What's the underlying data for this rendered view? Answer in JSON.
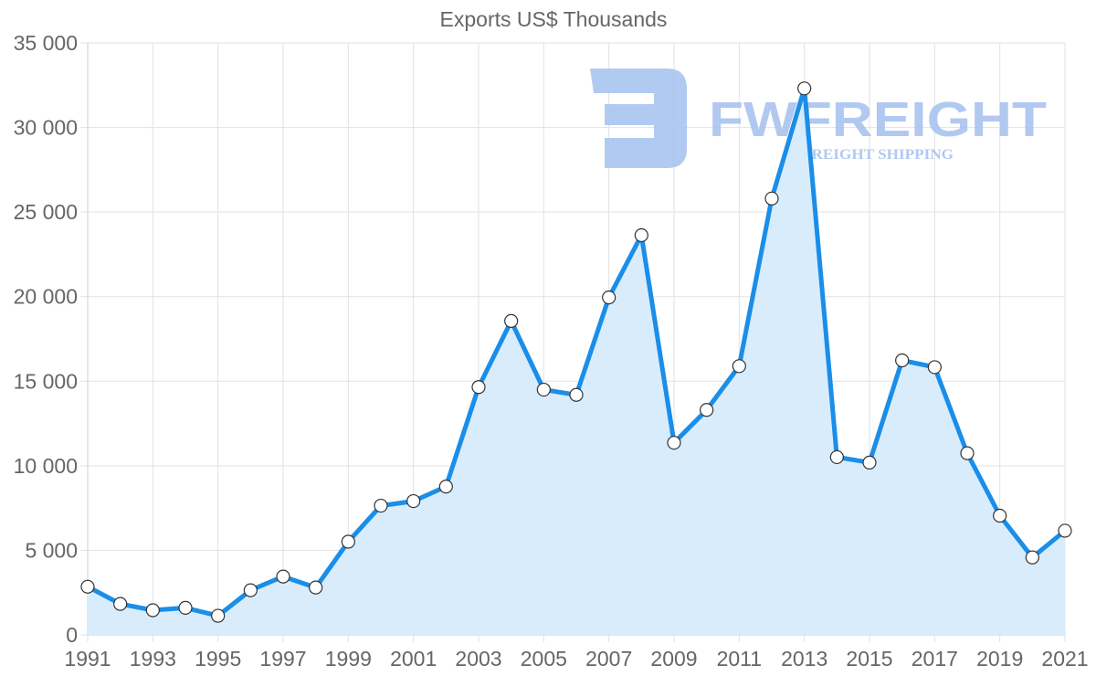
{
  "chart_data": {
    "type": "line",
    "title": "Exports US$ Thousands",
    "xlabel": "",
    "ylabel": "",
    "ylim": [
      0,
      35000
    ],
    "y_ticks": [
      "0",
      "5 000",
      "10 000",
      "15 000",
      "20 000",
      "25 000",
      "30 000",
      "35 000"
    ],
    "y_tick_values": [
      0,
      5000,
      10000,
      15000,
      20000,
      25000,
      30000,
      35000
    ],
    "x_tick_labels": [
      "1991",
      "1993",
      "1995",
      "1997",
      "1999",
      "2001",
      "2003",
      "2005",
      "2007",
      "2009",
      "2011",
      "2013",
      "2015",
      "2017",
      "2019",
      "2021"
    ],
    "grid": true,
    "fill": true,
    "legend": null,
    "series": [
      {
        "name": "Exports",
        "color": "#1a8ee8",
        "fill_color": "#d7ebfc",
        "x": [
          1991,
          1992,
          1993,
          1994,
          1995,
          1996,
          1997,
          1998,
          1999,
          2000,
          2001,
          2002,
          2003,
          2004,
          2005,
          2006,
          2007,
          2008,
          2009,
          2010,
          2011,
          2012,
          2013,
          2014,
          2015,
          2016,
          2017,
          2018,
          2019,
          2020,
          2021
        ],
        "values": [
          2850,
          1830,
          1460,
          1600,
          1130,
          2640,
          3450,
          2800,
          5510,
          7640,
          7910,
          8770,
          14650,
          18560,
          14500,
          14190,
          19950,
          23630,
          11360,
          13300,
          15890,
          25800,
          32310,
          10510,
          10190,
          16230,
          15830,
          10740,
          7050,
          4580,
          6160
        ]
      }
    ]
  },
  "watermark": {
    "brand": "FWFREIGHT",
    "tagline": "FREIGHT SHIPPING",
    "color": "#a9c4ef"
  },
  "colors": {
    "line": "#1a8ee8",
    "fill": "#d7ebfc",
    "grid": "#e2e2e2",
    "text": "#666666",
    "point_fill": "#ffffff",
    "point_stroke": "#333333"
  }
}
